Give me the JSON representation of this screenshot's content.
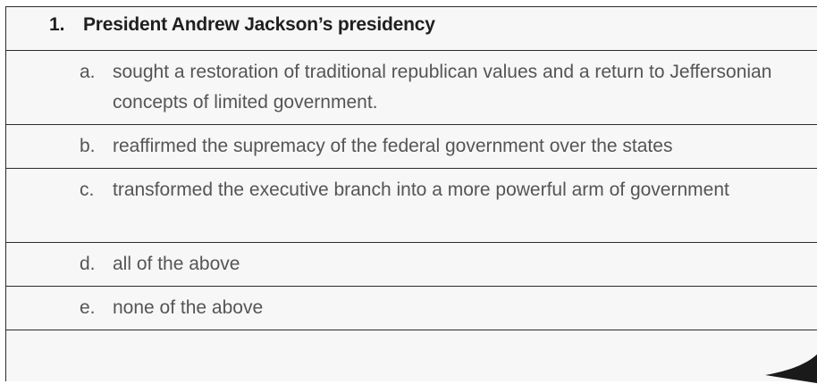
{
  "question": {
    "number": "1.",
    "text": "President Andrew Jackson’s presidency"
  },
  "options": [
    {
      "letter": "a.",
      "text": "sought a restoration of traditional republican values and a return to Jeffersonian concepts of limited government."
    },
    {
      "letter": "b.",
      "text": "reaffirmed the supremacy of the federal government over the states"
    },
    {
      "letter": "c.",
      "text": "transformed the executive branch into a more powerful arm of government"
    },
    {
      "letter": "d.",
      "text": "all of the above"
    },
    {
      "letter": "e.",
      "text": "none of the above"
    }
  ]
}
